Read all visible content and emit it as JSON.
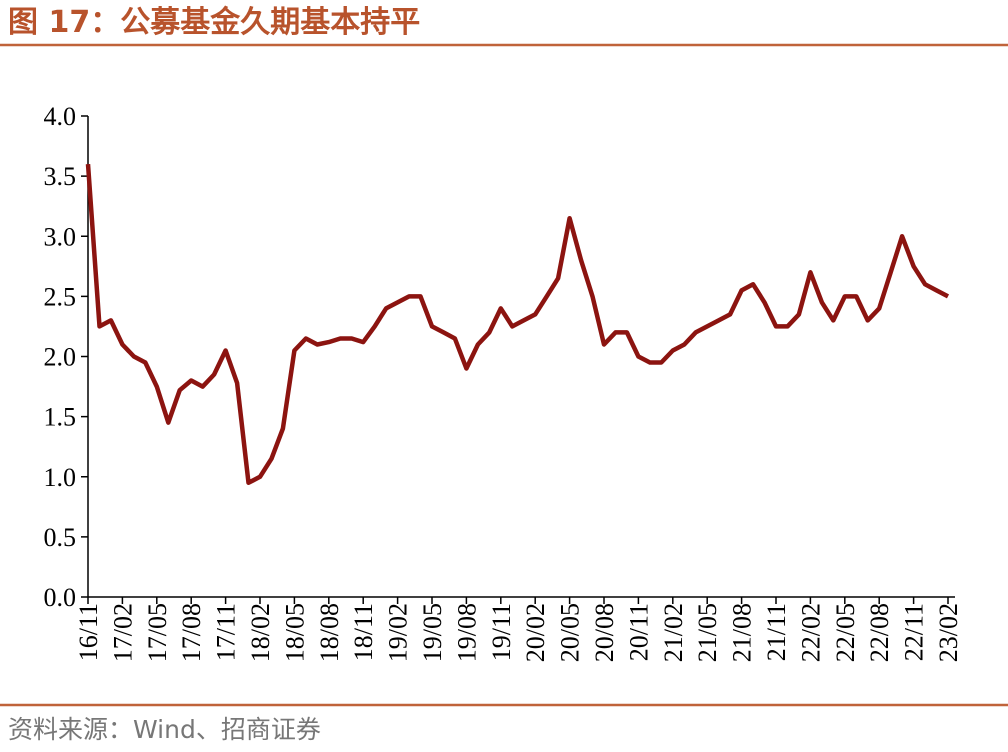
{
  "chart_data": {
    "type": "line",
    "title": "图 17：公募基金久期基本持平",
    "source": "资料来源：Wind、招商证券",
    "categories": [
      "16/11",
      null,
      null,
      "17/02",
      null,
      null,
      "17/05",
      null,
      null,
      "17/08",
      null,
      null,
      "17/11",
      null,
      null,
      "18/02",
      null,
      null,
      "18/05",
      null,
      null,
      "18/08",
      null,
      null,
      "18/11",
      null,
      null,
      "19/02",
      null,
      null,
      "19/05",
      null,
      null,
      "19/08",
      null,
      null,
      "19/11",
      null,
      null,
      "20/02",
      null,
      null,
      "20/05",
      null,
      null,
      "20/08",
      null,
      null,
      "20/11",
      null,
      null,
      "21/02",
      null,
      null,
      "21/05",
      null,
      null,
      "21/08",
      null,
      null,
      "21/11",
      null,
      null,
      "22/02",
      null,
      null,
      "22/05",
      null,
      null,
      "22/08",
      null,
      null,
      "22/11",
      null,
      null,
      "23/02"
    ],
    "series": [
      {
        "name": "公募基金久期",
        "color": "#8c1410",
        "values": [
          3.6,
          2.25,
          2.3,
          2.1,
          2.0,
          1.95,
          1.75,
          1.45,
          1.72,
          1.8,
          1.75,
          1.85,
          2.05,
          1.78,
          0.95,
          1.0,
          1.15,
          1.4,
          2.05,
          2.15,
          2.1,
          2.12,
          2.15,
          2.15,
          2.12,
          2.25,
          2.4,
          2.45,
          2.5,
          2.5,
          2.25,
          2.2,
          2.15,
          1.9,
          2.1,
          2.2,
          2.4,
          2.25,
          2.3,
          2.35,
          2.5,
          2.65,
          3.15,
          2.8,
          2.5,
          2.1,
          2.2,
          2.2,
          2.0,
          1.95,
          1.95,
          2.05,
          2.1,
          2.2,
          2.25,
          2.3,
          2.35,
          2.55,
          2.6,
          2.45,
          2.25,
          2.25,
          2.35,
          2.7,
          2.45,
          2.3,
          2.5,
          2.5,
          2.3,
          2.4,
          2.7,
          3.0,
          2.75,
          2.6,
          2.55,
          2.5
        ]
      }
    ],
    "ylim": [
      0,
      4
    ],
    "yticks": [
      {
        "value": 0,
        "label": "0.0"
      },
      {
        "value": 0.5,
        "label": "0.5"
      },
      {
        "value": 1,
        "label": "1.0"
      },
      {
        "value": 1.5,
        "label": "1.5"
      },
      {
        "value": 2,
        "label": "2.0"
      },
      {
        "value": 2.5,
        "label": "2.5"
      },
      {
        "value": 3,
        "label": "3.0"
      },
      {
        "value": 3.5,
        "label": "3.5"
      },
      {
        "value": 4,
        "label": "4.0"
      }
    ],
    "grid": false
  }
}
